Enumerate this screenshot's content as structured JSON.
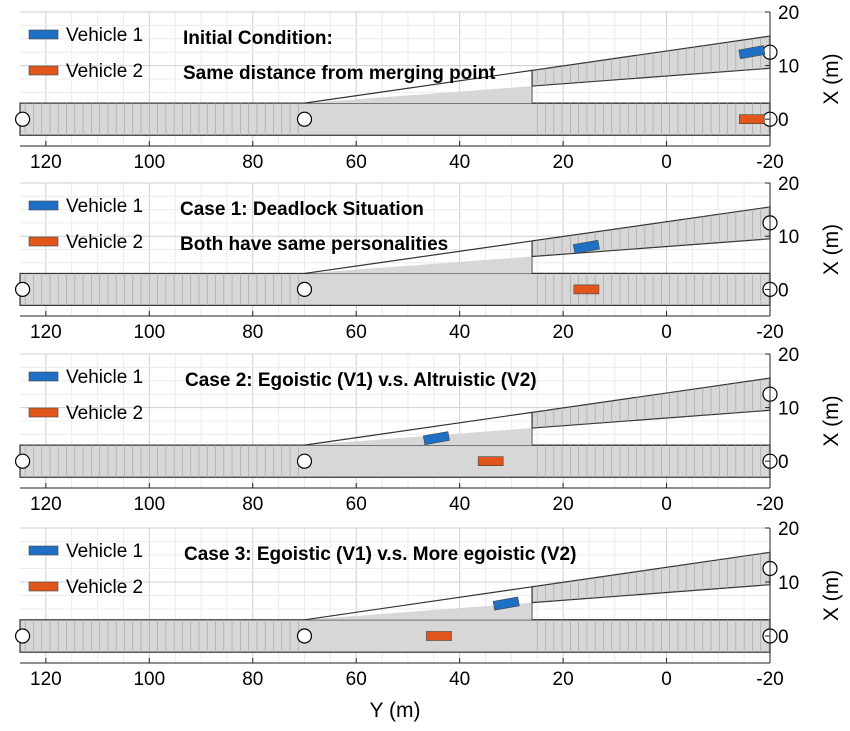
{
  "colors": {
    "vehicle_1": "#1f6fc4",
    "vehicle_2": "#e0561b",
    "road": "#d7d7d7",
    "grid": "#d9d9d9"
  },
  "chart_data": [
    {
      "type": "scatter",
      "annotation": [
        "Initial Condition:",
        "Same distance from merging point"
      ],
      "legend": [
        "Vehicle 1",
        "Vehicle 2"
      ],
      "legend_position": "top-left",
      "series": [
        {
          "name": "Vehicle 1",
          "x": [
            -16.5
          ],
          "y": [
            12.5
          ],
          "angle_deg": -10
        },
        {
          "name": "Vehicle 2",
          "x": [
            -16.5
          ],
          "y": [
            0
          ],
          "angle_deg": 0
        }
      ],
      "xlim": [
        125,
        -20
      ],
      "ylim": [
        -5,
        20
      ],
      "x_ticks": [
        120,
        100,
        80,
        60,
        40,
        20,
        0,
        -20
      ],
      "y_ticks": [
        0,
        10,
        20
      ],
      "xlabel": "",
      "ylabel": "X (m)",
      "grid": true
    },
    {
      "type": "scatter",
      "annotation": [
        "Case 1: Deadlock Situation",
        "Both have same personalities"
      ],
      "legend": [
        "Vehicle 1",
        "Vehicle 2"
      ],
      "legend_position": "top-left",
      "series": [
        {
          "name": "Vehicle 1",
          "x": [
            15.5
          ],
          "y": [
            8
          ],
          "angle_deg": -10
        },
        {
          "name": "Vehicle 2",
          "x": [
            15.5
          ],
          "y": [
            0
          ],
          "angle_deg": 0
        }
      ],
      "xlim": [
        125,
        -20
      ],
      "ylim": [
        -5,
        20
      ],
      "x_ticks": [
        120,
        100,
        80,
        60,
        40,
        20,
        0,
        -20
      ],
      "y_ticks": [
        0,
        10,
        20
      ],
      "xlabel": "",
      "ylabel": "X (m)",
      "grid": true
    },
    {
      "type": "scatter",
      "annotation": [
        "Case 2: Egoistic (V1) v.s. Altruistic (V2)"
      ],
      "legend": [
        "Vehicle 1",
        "Vehicle 2"
      ],
      "legend_position": "top-left",
      "series": [
        {
          "name": "Vehicle 1",
          "x": [
            44.5
          ],
          "y": [
            4.3
          ],
          "angle_deg": -10
        },
        {
          "name": "Vehicle 2",
          "x": [
            34
          ],
          "y": [
            0
          ],
          "angle_deg": 0
        }
      ],
      "xlim": [
        125,
        -20
      ],
      "ylim": [
        -5,
        20
      ],
      "x_ticks": [
        120,
        100,
        80,
        60,
        40,
        20,
        0,
        -20
      ],
      "y_ticks": [
        0,
        10,
        20
      ],
      "xlabel": "",
      "ylabel": "X (m)",
      "grid": true
    },
    {
      "type": "scatter",
      "annotation": [
        "Case 3: Egoistic (V1) v.s. More egoistic (V2)"
      ],
      "legend": [
        "Vehicle 1",
        "Vehicle 2"
      ],
      "legend_position": "top-left",
      "series": [
        {
          "name": "Vehicle 1",
          "x": [
            31
          ],
          "y": [
            6
          ],
          "angle_deg": -10
        },
        {
          "name": "Vehicle 2",
          "x": [
            44
          ],
          "y": [
            0
          ],
          "angle_deg": 0
        }
      ],
      "xlim": [
        125,
        -20
      ],
      "ylim": [
        -5,
        20
      ],
      "x_ticks": [
        120,
        100,
        80,
        60,
        40,
        20,
        0,
        -20
      ],
      "y_ticks": [
        0,
        10,
        20
      ],
      "xlabel": "Y (m)",
      "ylabel": "X (m)",
      "grid": true
    }
  ]
}
